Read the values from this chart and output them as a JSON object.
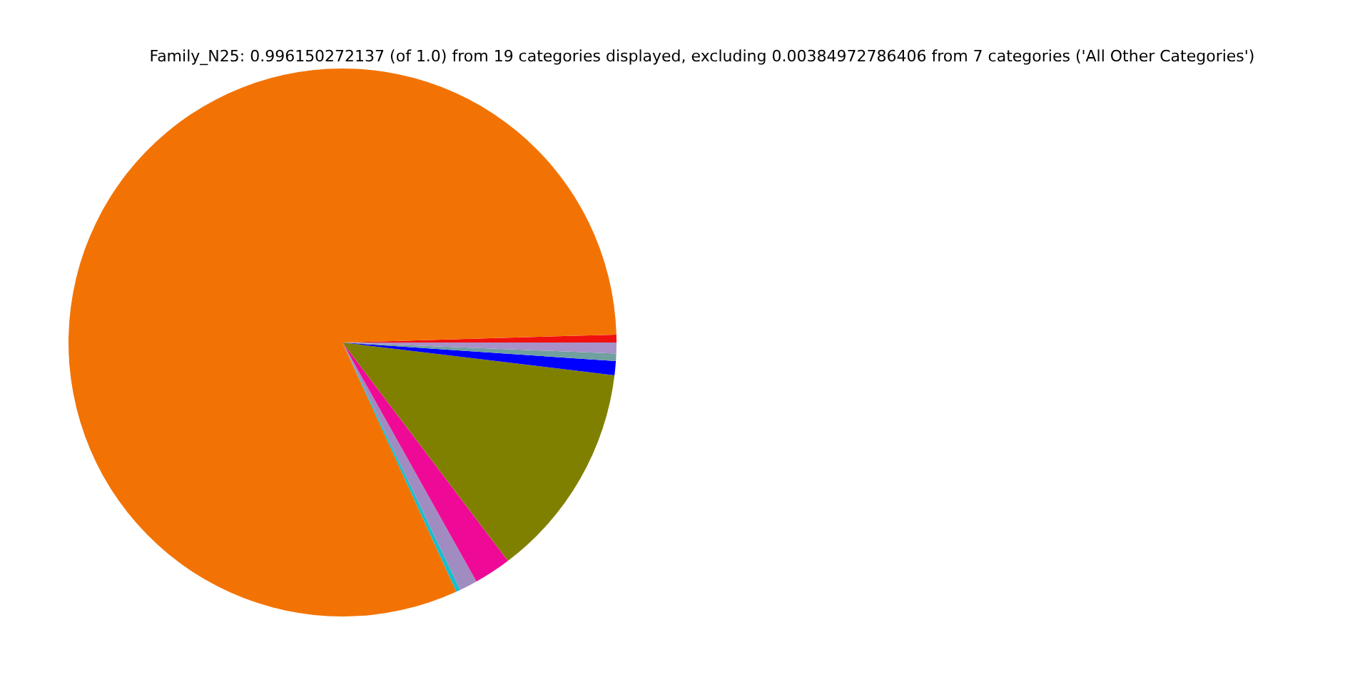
{
  "chart_data": {
    "type": "pie",
    "title": "Family_N25: 0.996150272137 (of 1.0) from 19 categories displayed, excluding 0.00384972786406 from 7 categories ('All Other Categories')",
    "categories": [
      null,
      null,
      null,
      null,
      null,
      null,
      null,
      null,
      null
    ],
    "values": [
      0.46,
      81.36,
      0.25,
      1.06,
      2.19,
      12.77,
      0.83,
      0.44,
      0.64
    ],
    "colors": [
      "#f01010",
      "#f27304",
      "#17becf",
      "#a08cc0",
      "#ee0a96",
      "#808000",
      "#0000ff",
      "#70a0a0",
      "#a890c8"
    ]
  }
}
